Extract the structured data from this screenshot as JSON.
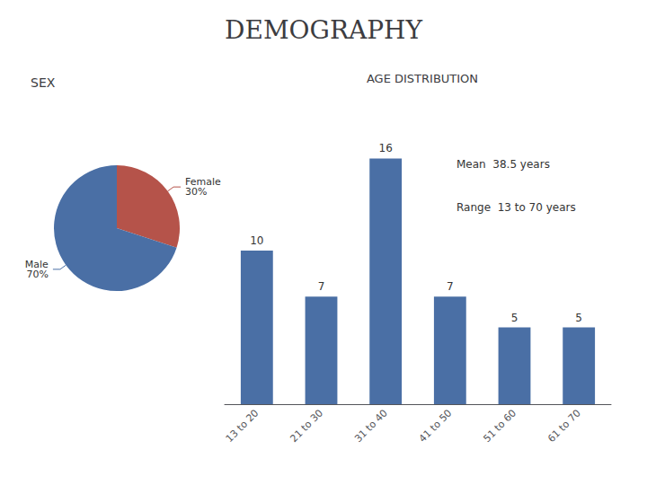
{
  "title": "DEMOGRAPHY",
  "chart_data": [
    {
      "type": "pie",
      "title": "SEX",
      "categories": [
        "Female",
        "Male"
      ],
      "values": [
        30,
        70
      ],
      "value_labels": [
        "30%",
        "70%"
      ],
      "colors": [
        "#b5534a",
        "#4a6fa5"
      ],
      "data_labels": true
    },
    {
      "type": "bar",
      "title": "AGE DISTRIBUTION",
      "categories": [
        "13 to 20",
        "21 to 30",
        "31 to 40",
        "41 to 50",
        "51 to 60",
        "61 to 70"
      ],
      "values": [
        10,
        7,
        16,
        7,
        5,
        5
      ],
      "color": "#4a6fa5",
      "ylim": [
        0,
        20
      ],
      "data_labels": true,
      "tick_labels": "x",
      "grid": false,
      "annotations": [
        "Mean  38.5 years",
        "Range  13 to 70 years"
      ]
    }
  ]
}
